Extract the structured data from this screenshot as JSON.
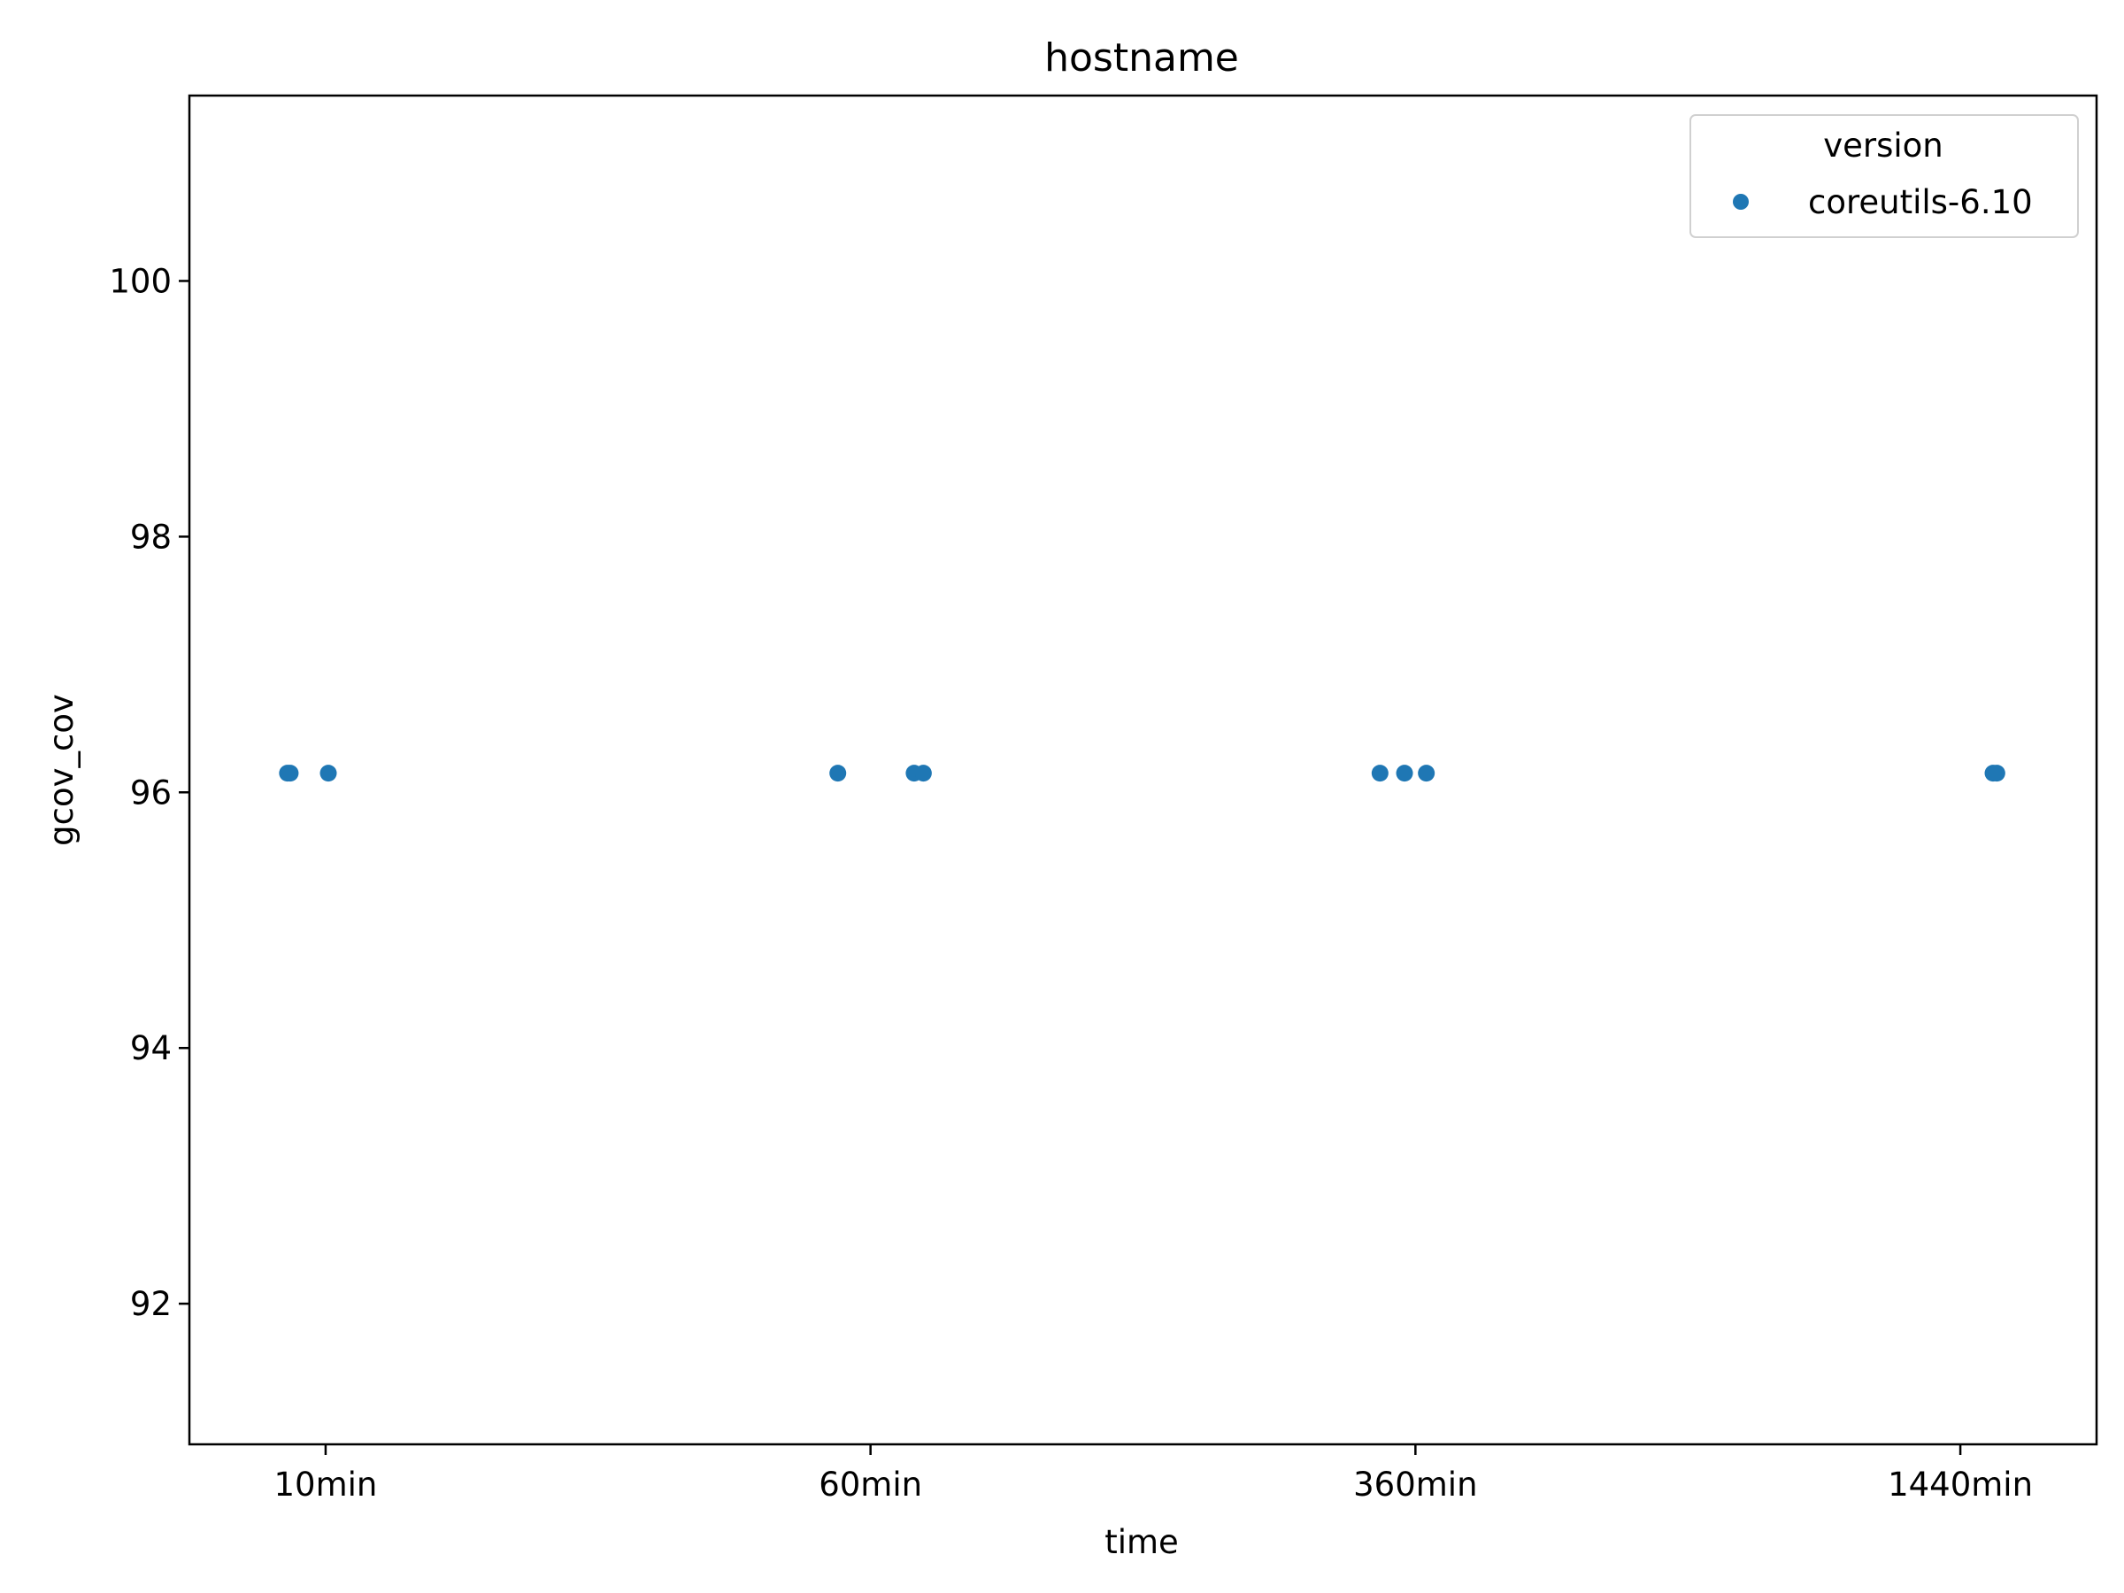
{
  "chart_data": {
    "type": "scatter",
    "title": "hostname",
    "xlabel": "time",
    "ylabel": "gcov_cov",
    "categories": [
      "10min",
      "60min",
      "360min",
      "1440min"
    ],
    "ylim": [
      90.9,
      101.45
    ],
    "yticks": [
      92,
      94,
      96,
      98,
      100
    ],
    "grid": false,
    "legend": {
      "title": "version",
      "position": "top-right"
    },
    "series": [
      {
        "name": "coreutils-6.10",
        "color": "#1f77b4",
        "points": [
          {
            "x": "10min",
            "y": 96.15
          },
          {
            "x": "10min",
            "y": 96.15
          },
          {
            "x": "10min",
            "y": 96.15
          },
          {
            "x": "60min",
            "y": 96.15
          },
          {
            "x": "60min",
            "y": 96.15
          },
          {
            "x": "60min",
            "y": 96.15
          },
          {
            "x": "360min",
            "y": 96.15
          },
          {
            "x": "360min",
            "y": 96.15
          },
          {
            "x": "360min",
            "y": 96.15
          },
          {
            "x": "1440min",
            "y": 96.15
          },
          {
            "x": "1440min",
            "y": 96.15
          }
        ]
      }
    ]
  }
}
